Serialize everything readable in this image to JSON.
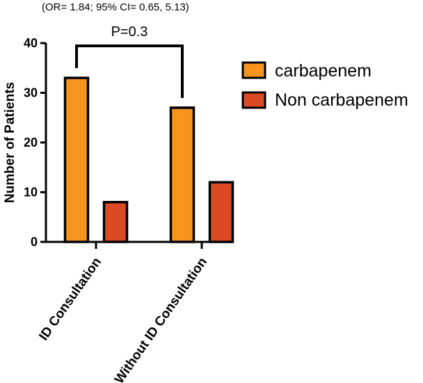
{
  "chart_data": {
    "type": "bar",
    "subtitle": "(OR= 1.84; 95% CI= 0.65, 5.13)",
    "ylabel": "Number of Patients",
    "xlabel": "",
    "ylim": [
      0,
      40
    ],
    "yticks": [
      "0",
      "10",
      "20",
      "30",
      "40"
    ],
    "categories": [
      "ID Consultation",
      "Without ID Consultation"
    ],
    "series": [
      {
        "name": "carbapenem",
        "values": [
          33,
          27
        ],
        "color": "#f7941d"
      },
      {
        "name": "Non carbapenem",
        "values": [
          8,
          12
        ],
        "color": "#dc4a25"
      }
    ],
    "legend_position": "right",
    "annotation": {
      "text": "P=0.3"
    },
    "grid": false
  }
}
